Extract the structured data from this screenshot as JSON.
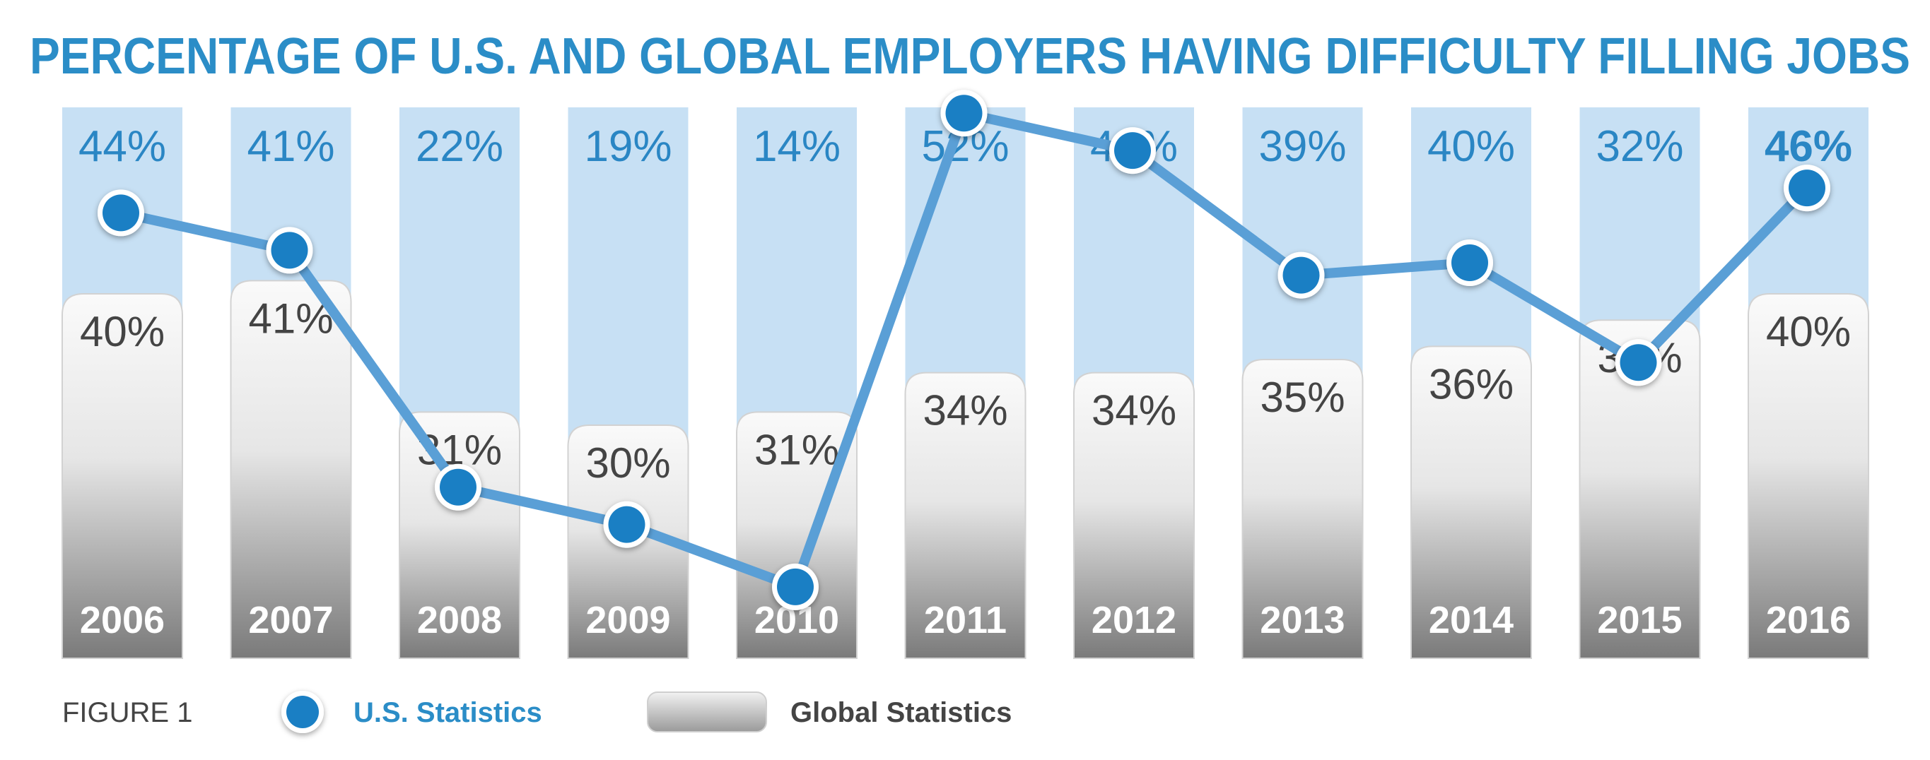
{
  "title": "PERCENTAGE OF U.S. AND GLOBAL EMPLOYERS HAVING DIFFICULTY FILLING JOBS",
  "figure_label": "FIGURE 1",
  "colors": {
    "title": "#2b8dc7",
    "us_point": "#1a7fc4",
    "us_line": "#5a9fd6",
    "us_band": "#c7e0f4",
    "global_bar_top": "#f6f6f6",
    "global_bar_bottom": "#7d7d7d"
  },
  "chart_data": {
    "type": "bar",
    "categories": [
      "2006",
      "2007",
      "2008",
      "2009",
      "2010",
      "2011",
      "2012",
      "2013",
      "2014",
      "2015",
      "2016"
    ],
    "series": [
      {
        "name": "U.S. Statistics",
        "type": "line",
        "values": [
          44,
          41,
          22,
          19,
          14,
          52,
          49,
          39,
          40,
          32,
          46
        ],
        "labels": [
          "44%",
          "41%",
          "22%",
          "19%",
          "14%",
          "52%",
          "49%",
          "39%",
          "40%",
          "32%",
          "46%"
        ]
      },
      {
        "name": "Global Statistics",
        "type": "bar",
        "values": [
          40,
          41,
          31,
          30,
          31,
          34,
          34,
          35,
          36,
          38,
          40
        ],
        "labels": [
          "40%",
          "41%",
          "31%",
          "30%",
          "31%",
          "34%",
          "34%",
          "35%",
          "36%",
          "38%",
          "40%"
        ]
      }
    ],
    "legend": {
      "position": "bottom-left",
      "items": [
        "U.S. Statistics",
        "Global Statistics"
      ]
    },
    "grid": false
  }
}
